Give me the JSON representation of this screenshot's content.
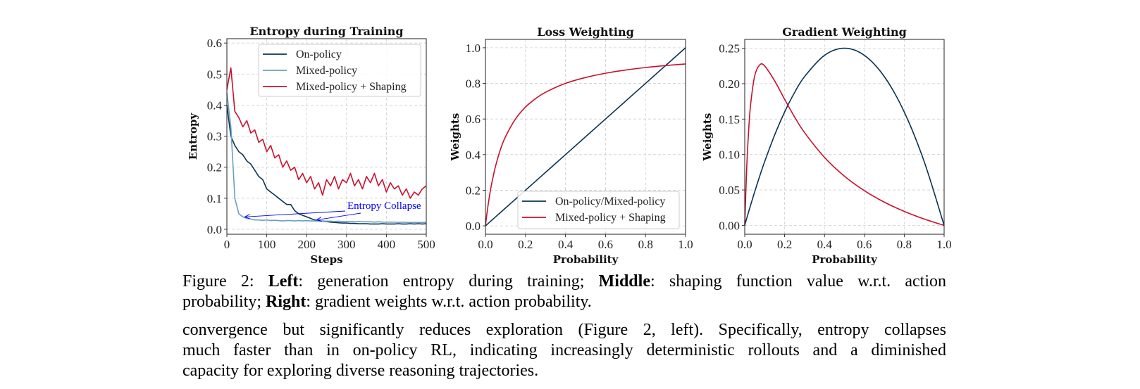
{
  "chart_data": [
    {
      "type": "line",
      "title": "Entropy during Training",
      "xlabel": "Steps",
      "ylabel": "Entropy",
      "xlim": [
        0,
        500
      ],
      "ylim": [
        -0.016,
        0.614
      ],
      "xticks": [
        0,
        100,
        200,
        300,
        400,
        500
      ],
      "xtick_labels": [
        "0",
        "100",
        "200",
        "300",
        "400",
        "500"
      ],
      "yticks": [
        0.0,
        0.1,
        0.2,
        0.3,
        0.4,
        0.5,
        0.6
      ],
      "ytick_labels": [
        "0.0",
        "0.1",
        "0.2",
        "0.3",
        "0.4",
        "0.5",
        "0.6"
      ],
      "grid": true,
      "legend": "top-right",
      "x": [
        0,
        10,
        20,
        30,
        40,
        50,
        60,
        70,
        80,
        90,
        100,
        110,
        120,
        130,
        140,
        150,
        160,
        170,
        180,
        190,
        200,
        210,
        220,
        230,
        240,
        250,
        260,
        270,
        280,
        290,
        300,
        310,
        320,
        330,
        340,
        350,
        360,
        370,
        380,
        390,
        400,
        410,
        420,
        430,
        440,
        450,
        460,
        470,
        480,
        490,
        500
      ],
      "series": [
        {
          "name": "On-policy",
          "color": "#0b3452",
          "values": [
            0.4,
            0.3,
            0.27,
            0.25,
            0.24,
            0.22,
            0.21,
            0.19,
            0.17,
            0.16,
            0.13,
            0.12,
            0.11,
            0.1,
            0.09,
            0.08,
            0.08,
            0.06,
            0.05,
            0.045,
            0.04,
            0.035,
            0.03,
            0.028,
            0.026,
            0.025,
            0.023,
            0.022,
            0.021,
            0.02,
            0.02,
            0.019,
            0.019,
            0.018,
            0.018,
            0.018,
            0.017,
            0.017,
            0.017,
            0.018,
            0.017,
            0.017,
            0.017,
            0.018,
            0.017,
            0.017,
            0.018,
            0.017,
            0.018,
            0.017,
            0.018
          ]
        },
        {
          "name": "Mixed-policy",
          "color": "#6a9fc2",
          "values": [
            0.44,
            0.33,
            0.1,
            0.05,
            0.04,
            0.035,
            0.033,
            0.03,
            0.03,
            0.029,
            0.03,
            0.028,
            0.029,
            0.028,
            0.027,
            0.028,
            0.028,
            0.027,
            0.028,
            0.027,
            0.028,
            0.027,
            0.027,
            0.026,
            0.027,
            0.026,
            0.026,
            0.025,
            0.026,
            0.025,
            0.025,
            0.025,
            0.024,
            0.025,
            0.024,
            0.024,
            0.024,
            0.023,
            0.024,
            0.023,
            0.023,
            0.023,
            0.023,
            0.022,
            0.023,
            0.022,
            0.022,
            0.022,
            0.022,
            0.022,
            0.022
          ]
        },
        {
          "name": "Mixed-policy + Shaping",
          "color": "#c8102e",
          "values": [
            0.45,
            0.52,
            0.38,
            0.36,
            0.33,
            0.35,
            0.31,
            0.32,
            0.28,
            0.29,
            0.25,
            0.27,
            0.23,
            0.24,
            0.2,
            0.22,
            0.19,
            0.2,
            0.16,
            0.18,
            0.15,
            0.17,
            0.13,
            0.15,
            0.11,
            0.16,
            0.14,
            0.17,
            0.13,
            0.16,
            0.15,
            0.18,
            0.14,
            0.16,
            0.13,
            0.17,
            0.15,
            0.18,
            0.14,
            0.16,
            0.12,
            0.15,
            0.13,
            0.14,
            0.11,
            0.13,
            0.1,
            0.12,
            0.11,
            0.13,
            0.14
          ]
        }
      ],
      "annotation": {
        "text": "Entropy Collapse",
        "color": "#0000ff",
        "targets": [
          [
            45,
            0.04
          ],
          [
            225,
            0.03
          ]
        ]
      }
    },
    {
      "type": "line",
      "title": "Loss Weighting",
      "xlabel": "Probability",
      "ylabel": "Weights",
      "xlim": [
        0,
        1
      ],
      "ylim": [
        -0.047,
        1.047
      ],
      "xticks": [
        0,
        0.2,
        0.4,
        0.6,
        0.8,
        1.0
      ],
      "xtick_labels": [
        "0.0",
        "0.2",
        "0.4",
        "0.6",
        "0.8",
        "1.0"
      ],
      "yticks": [
        0,
        0.2,
        0.4,
        0.6,
        0.8,
        1.0
      ],
      "ytick_labels": [
        "0.0",
        "0.2",
        "0.4",
        "0.6",
        "0.8",
        "1.0"
      ],
      "grid": true,
      "legend": "lower-right",
      "x": [
        0,
        0.01,
        0.02,
        0.03,
        0.05,
        0.075,
        0.1,
        0.15,
        0.2,
        0.25,
        0.3,
        0.4,
        0.5,
        0.6,
        0.7,
        0.8,
        0.9,
        1.0
      ],
      "series": [
        {
          "name": "On-policy/Mixed-policy",
          "color": "#0b3452",
          "values": [
            0,
            0.01,
            0.02,
            0.03,
            0.05,
            0.075,
            0.1,
            0.15,
            0.2,
            0.25,
            0.3,
            0.4,
            0.5,
            0.6,
            0.7,
            0.8,
            0.9,
            1.0
          ]
        },
        {
          "name": "Mixed-policy + Shaping",
          "color": "#c8102e",
          "values": [
            0,
            0.091,
            0.167,
            0.231,
            0.333,
            0.429,
            0.5,
            0.6,
            0.667,
            0.714,
            0.75,
            0.8,
            0.833,
            0.857,
            0.875,
            0.889,
            0.9,
            0.909
          ]
        }
      ]
    },
    {
      "type": "line",
      "title": "Gradient Weighting",
      "xlabel": "Probability",
      "ylabel": "Weights",
      "xlim": [
        0,
        1
      ],
      "ylim": [
        -0.0125,
        0.2625
      ],
      "xticks": [
        0,
        0.2,
        0.4,
        0.6,
        0.8,
        1.0
      ],
      "xtick_labels": [
        "0.0",
        "0.2",
        "0.4",
        "0.6",
        "0.8",
        "1.0"
      ],
      "yticks": [
        0,
        0.05,
        0.1,
        0.15,
        0.2,
        0.25
      ],
      "ytick_labels": [
        "0.00",
        "0.05",
        "0.10",
        "0.15",
        "0.20",
        "0.25"
      ],
      "grid": true,
      "x": [
        0,
        0.01,
        0.02,
        0.03,
        0.05,
        0.075,
        0.1,
        0.15,
        0.2,
        0.25,
        0.3,
        0.4,
        0.5,
        0.6,
        0.7,
        0.8,
        0.9,
        1.0
      ],
      "series": [
        {
          "color": "#0b3452",
          "values": [
            0,
            0.0099,
            0.0196,
            0.0291,
            0.0475,
            0.0694,
            0.09,
            0.1275,
            0.16,
            0.1875,
            0.21,
            0.24,
            0.25,
            0.24,
            0.21,
            0.16,
            0.09,
            0
          ]
        },
        {
          "color": "#c8102e",
          "values": [
            0,
            0.0818,
            0.136,
            0.172,
            0.211,
            0.2265,
            0.225,
            0.204,
            0.178,
            0.153,
            0.131,
            0.096,
            0.0694,
            0.049,
            0.0328,
            0.0198,
            0.009,
            0
          ]
        }
      ]
    }
  ],
  "caption": {
    "prefix": "Figure 2: ",
    "left_label": "Left",
    "left_text": ": generation entropy during training; ",
    "middle_label": "Middle",
    "middle_text": ": shaping function value w.r.t. action",
    "line2_start": "probability; ",
    "right_label": "Right",
    "right_text": ": gradient weights w.r.t. action probability."
  },
  "body": {
    "lines": [
      "convergence but significantly reduces exploration (Figure 2, left). Specifically, entropy collapses",
      "much faster than in on-policy RL, indicating increasingly deterministic rollouts and a diminished",
      "capacity for exploring diverse reasoning trajectories."
    ]
  }
}
